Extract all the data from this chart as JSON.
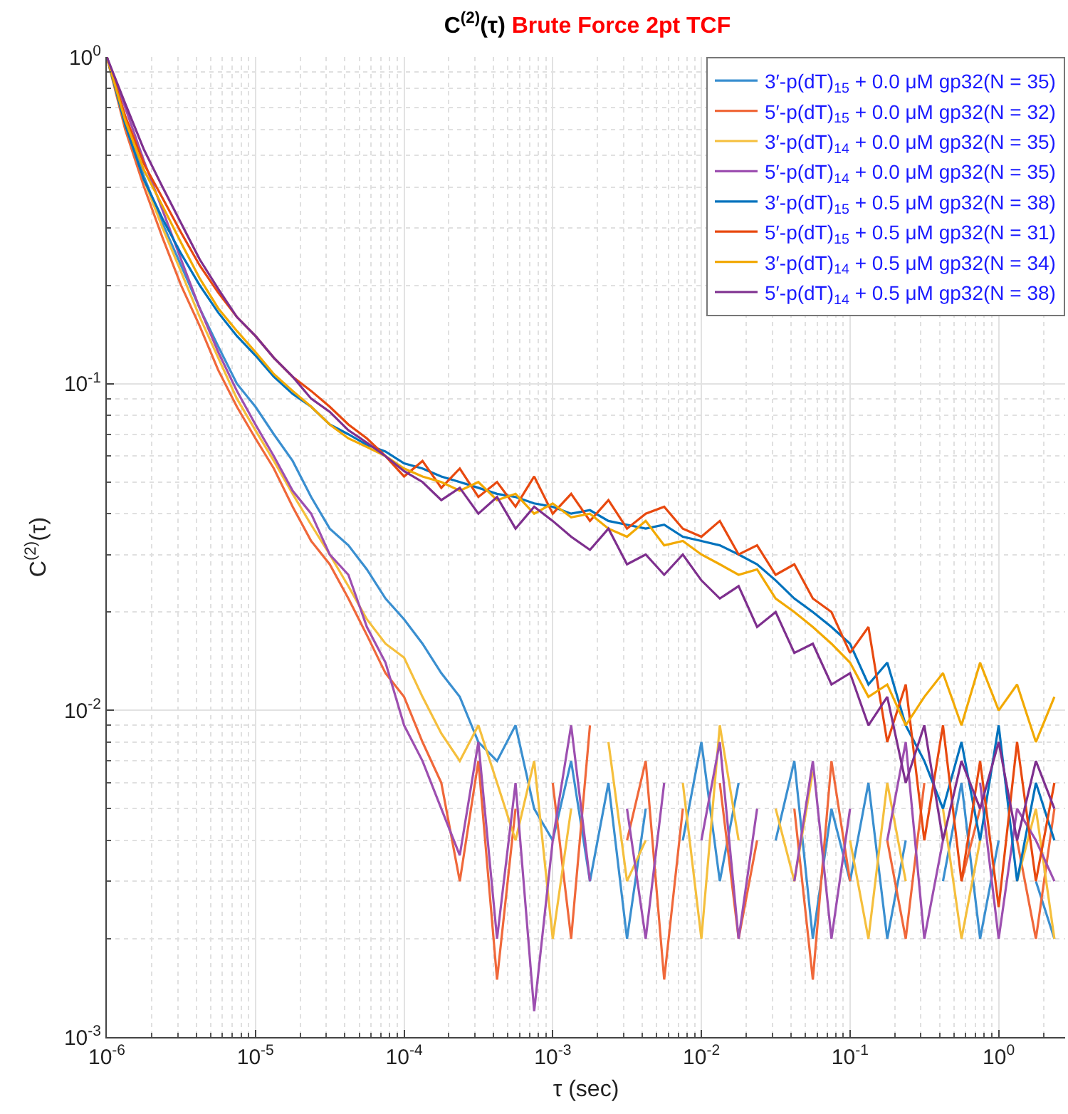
{
  "chart_data": {
    "type": "line",
    "title": "C$^{(2)}$(τ)",
    "subtitle": "Brute Force 2pt TCF",
    "xlabel": "τ (sec)",
    "ylabel": "C$^{(2)}$(τ)",
    "log": "xy",
    "grid": true,
    "legend": "top right",
    "marker": "none",
    "line_style": "solid",
    "xlim": [
      1e-06,
      2.8
    ],
    "ylim": [
      0.001,
      1
    ],
    "xticks": [
      {
        "value": 1e-06,
        "label": "10$^{-6}$"
      },
      {
        "value": 1e-05,
        "label": "10$^{-5}$"
      },
      {
        "value": 0.0001,
        "label": "10$^{-4}$"
      },
      {
        "value": 0.001,
        "label": "10$^{-3}$"
      },
      {
        "value": 0.01,
        "label": "10$^{-2}$"
      },
      {
        "value": 0.1,
        "label": "10$^{-1}$"
      },
      {
        "value": 1,
        "label": "10$^{0}$"
      }
    ],
    "yticks": [
      {
        "value": 0.001,
        "label": "10$^{-3}$"
      },
      {
        "value": 0.01,
        "label": "10$^{-2}$"
      },
      {
        "value": 0.1,
        "label": "10$^{-1}$"
      },
      {
        "value": 1,
        "label": "10$^{0}$"
      }
    ],
    "x": [
      1e-06,
      1.33e-06,
      1.78e-06,
      2.37e-06,
      3.16e-06,
      4.22e-06,
      5.62e-06,
      7.5e-06,
      1e-05,
      1.33e-05,
      1.78e-05,
      2.37e-05,
      3.16e-05,
      4.22e-05,
      5.62e-05,
      7.5e-05,
      0.0001,
      0.000133,
      0.000178,
      0.000237,
      0.000316,
      0.000422,
      0.000562,
      0.00075,
      0.001,
      0.00133,
      0.00178,
      0.00237,
      0.00316,
      0.00422,
      0.00562,
      0.0075,
      0.01,
      0.0133,
      0.0178,
      0.0237,
      0.0316,
      0.0422,
      0.0562,
      0.075,
      0.1,
      0.133,
      0.178,
      0.237,
      0.316,
      0.422,
      0.562,
      0.75,
      1,
      1.33,
      1.78,
      2.37
    ],
    "series": [
      {
        "name": "3′-p(dT)$_{15}$ + 0.0 μM gp32(N = 35)",
        "color": "#3a8fd0",
        "values": [
          1,
          0.64,
          0.43,
          0.31,
          0.23,
          0.17,
          0.13,
          0.1,
          0.085,
          0.07,
          0.058,
          0.045,
          0.036,
          0.032,
          0.027,
          0.022,
          0.019,
          0.016,
          0.013,
          0.011,
          0.008,
          0.007,
          0.009,
          0.005,
          0.004,
          0.007,
          0.003,
          0.006,
          0.002,
          0.005,
          null,
          0.004,
          0.008,
          0.003,
          0.006,
          null,
          0.004,
          0.007,
          0.002,
          0.005,
          0.003,
          0.006,
          0.002,
          0.004,
          null,
          0.003,
          0.006,
          0.002,
          0.004,
          null,
          0.003,
          0.002
        ]
      },
      {
        "name": "5′-p(dT)$_{15}$ + 0.0 μM gp32(N = 32)",
        "color": "#f0683a",
        "values": [
          1,
          0.6,
          0.4,
          0.28,
          0.2,
          0.15,
          0.11,
          0.085,
          0.068,
          0.055,
          0.042,
          0.033,
          0.028,
          0.022,
          0.017,
          0.013,
          0.011,
          0.008,
          0.006,
          0.003,
          0.007,
          0.0015,
          0.005,
          null,
          0.006,
          0.002,
          0.009,
          null,
          0.004,
          0.007,
          0.0015,
          0.005,
          null,
          0.006,
          0.002,
          0.004,
          null,
          0.005,
          0.0015,
          0.007,
          0.003,
          null,
          0.004,
          0.002,
          0.006,
          null,
          0.003,
          0.005,
          null,
          0.004,
          0.002,
          0.005
        ]
      },
      {
        "name": "3′-p(dT)$_{14}$ + 0.0 μM gp32(N = 35)",
        "color": "#f5bf3c",
        "values": [
          1,
          0.62,
          0.42,
          0.3,
          0.22,
          0.16,
          0.12,
          0.09,
          0.072,
          0.058,
          0.046,
          0.037,
          0.03,
          0.024,
          0.019,
          0.016,
          0.0145,
          0.011,
          0.0085,
          0.007,
          0.009,
          0.006,
          0.004,
          0.007,
          0.002,
          0.005,
          null,
          0.008,
          0.003,
          0.004,
          null,
          0.006,
          0.002,
          0.009,
          0.004,
          null,
          0.005,
          0.003,
          0.0065,
          null,
          0.004,
          0.002,
          0.006,
          0.003,
          null,
          0.005,
          0.002,
          0.004,
          null,
          0.003,
          0.005,
          0.002
        ]
      },
      {
        "name": "5′-p(dT)$_{14}$ + 0.0 μM gp32(N = 35)",
        "color": "#9d4fb0",
        "values": [
          1,
          0.7,
          0.48,
          0.34,
          0.24,
          0.17,
          0.125,
          0.095,
          0.075,
          0.06,
          0.047,
          0.04,
          0.03,
          0.026,
          0.018,
          0.014,
          0.009,
          0.007,
          0.005,
          0.0036,
          0.008,
          0.002,
          0.006,
          0.0012,
          0.004,
          0.009,
          0.003,
          null,
          0.005,
          0.002,
          0.006,
          null,
          0.004,
          0.008,
          0.002,
          0.005,
          null,
          0.003,
          0.007,
          0.002,
          0.005,
          null,
          0.004,
          0.008,
          0.002,
          0.004,
          null,
          0.006,
          0.002,
          0.005,
          0.004,
          0.003
        ]
      },
      {
        "name": "3′-p(dT)$_{15}$ + 0.5 μM gp32(N = 38)",
        "color": "#0072bd",
        "values": [
          1,
          0.62,
          0.42,
          0.32,
          0.25,
          0.2,
          0.165,
          0.14,
          0.122,
          0.105,
          0.093,
          0.085,
          0.075,
          0.07,
          0.065,
          0.062,
          0.057,
          0.055,
          0.052,
          0.05,
          0.048,
          0.046,
          0.045,
          0.043,
          0.042,
          0.04,
          0.041,
          0.038,
          0.037,
          0.036,
          0.037,
          0.034,
          0.033,
          0.032,
          0.03,
          0.028,
          0.025,
          0.022,
          0.02,
          0.018,
          0.016,
          0.012,
          0.014,
          0.009,
          0.007,
          0.005,
          0.008,
          0.004,
          0.009,
          0.003,
          0.006,
          0.004
        ]
      },
      {
        "name": "5′-p(dT)$_{15}$ + 0.5 μM gp32(N = 31)",
        "color": "#e8490f",
        "values": [
          1,
          0.66,
          0.47,
          0.37,
          0.29,
          0.23,
          0.19,
          0.16,
          0.14,
          0.12,
          0.105,
          0.095,
          0.085,
          0.075,
          0.068,
          0.06,
          0.052,
          0.058,
          0.048,
          0.055,
          0.045,
          0.05,
          0.042,
          0.052,
          0.04,
          0.046,
          0.038,
          0.044,
          0.036,
          0.04,
          0.042,
          0.036,
          0.034,
          0.038,
          0.03,
          0.032,
          0.026,
          0.028,
          0.022,
          0.02,
          0.015,
          0.018,
          0.008,
          0.012,
          0.004,
          0.009,
          0.003,
          0.007,
          0.0025,
          0.008,
          0.003,
          0.006
        ]
      },
      {
        "name": "3′-p(dT)$_{14}$ + 0.5 μM gp32(N = 34)",
        "color": "#f2a900",
        "values": [
          1,
          0.64,
          0.45,
          0.35,
          0.27,
          0.21,
          0.17,
          0.145,
          0.125,
          0.107,
          0.095,
          0.085,
          0.075,
          0.068,
          0.064,
          0.06,
          0.055,
          0.052,
          0.05,
          0.047,
          0.05,
          0.044,
          0.046,
          0.04,
          0.043,
          0.039,
          0.04,
          0.036,
          0.034,
          0.038,
          0.032,
          0.033,
          0.03,
          0.028,
          0.026,
          0.027,
          0.022,
          0.02,
          0.018,
          0.016,
          0.014,
          0.011,
          0.012,
          0.009,
          0.011,
          0.013,
          0.009,
          0.014,
          0.01,
          0.012,
          0.008,
          0.011
        ]
      },
      {
        "name": "5′-p(dT)$_{14}$ + 0.5 μM gp32(N = 38)",
        "color": "#7e2f8e",
        "values": [
          1,
          0.72,
          0.52,
          0.4,
          0.31,
          0.24,
          0.195,
          0.16,
          0.14,
          0.12,
          0.105,
          0.09,
          0.082,
          0.072,
          0.066,
          0.06,
          0.054,
          0.05,
          0.044,
          0.048,
          0.04,
          0.045,
          0.036,
          0.042,
          0.038,
          0.034,
          0.031,
          0.036,
          0.028,
          0.03,
          0.026,
          0.03,
          0.025,
          0.022,
          0.024,
          0.018,
          0.02,
          0.015,
          0.016,
          0.012,
          0.013,
          0.009,
          0.011,
          0.006,
          0.009,
          0.004,
          0.007,
          0.005,
          0.008,
          0.004,
          0.007,
          0.005
        ]
      }
    ]
  }
}
